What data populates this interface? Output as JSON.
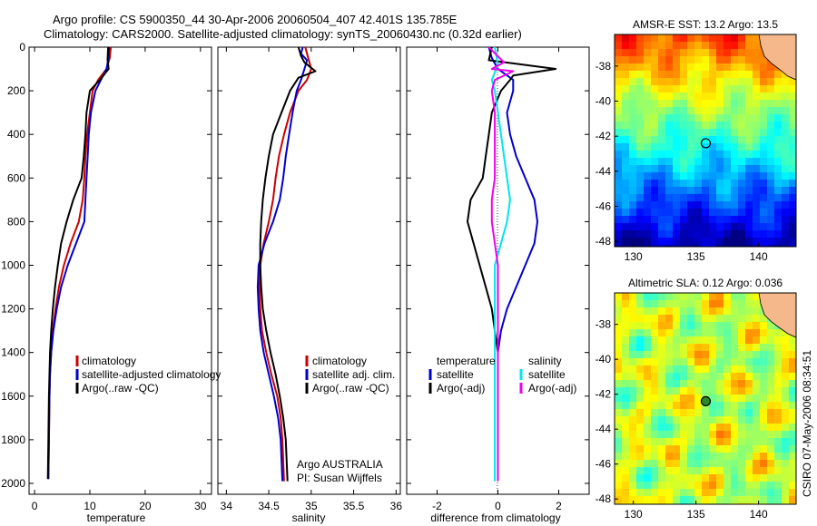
{
  "header": {
    "title_line1": "Argo profile: CS 5900350_44 30-Apr-2006 20060504_407 42.401S 135.785E",
    "title_line2": "Climatology: CARS2000. Satellite-adjusted climatology: synTS_20060430.nc (0.32d earlier)"
  },
  "colors": {
    "climatology": "#cc0000",
    "satellite": "#0000cc",
    "argo": "#000000",
    "sal_satellite": "#00e5ee",
    "sal_argo": "#ee00ee",
    "land": "#f5b88a"
  },
  "chart_data": [
    {
      "type": "line",
      "id": "temperature-profile",
      "xlabel": "temperature",
      "xlim": [
        -1,
        32
      ],
      "ylim": [
        0,
        2050
      ],
      "y_reversed": true,
      "xticks": [
        "0",
        "10",
        "20",
        "30"
      ],
      "yticks": [
        "0",
        "200",
        "400",
        "600",
        "800",
        "1000",
        "1200",
        "1400",
        "1600",
        "1800",
        "2000"
      ],
      "legend": [
        "climatology",
        "satellite-adjusted climatology",
        "Argo(..raw -QC)"
      ],
      "series": [
        {
          "name": "climatology",
          "color": "#cc0000",
          "points": [
            [
              13.8,
              0
            ],
            [
              13.6,
              50
            ],
            [
              13.0,
              100
            ],
            [
              11.5,
              150
            ],
            [
              10.5,
              200
            ],
            [
              10.0,
              300
            ],
            [
              9.5,
              400
            ],
            [
              9.2,
              500
            ],
            [
              9.0,
              600
            ],
            [
              8.7,
              700
            ],
            [
              8.0,
              800
            ],
            [
              6.5,
              900
            ],
            [
              5.3,
              1000
            ],
            [
              4.4,
              1100
            ],
            [
              3.8,
              1200
            ],
            [
              3.3,
              1300
            ],
            [
              3.0,
              1400
            ],
            [
              2.8,
              1500
            ],
            [
              2.7,
              1600
            ],
            [
              2.6,
              1800
            ],
            [
              2.5,
              1980
            ]
          ]
        },
        {
          "name": "satellite-adjusted climatology",
          "color": "#0000cc",
          "points": [
            [
              13.5,
              0
            ],
            [
              13.4,
              50
            ],
            [
              13.0,
              100
            ],
            [
              12.0,
              150
            ],
            [
              11.0,
              200
            ],
            [
              10.2,
              300
            ],
            [
              9.8,
              400
            ],
            [
              9.6,
              500
            ],
            [
              9.4,
              600
            ],
            [
              9.2,
              700
            ],
            [
              9.0,
              800
            ],
            [
              7.5,
              900
            ],
            [
              6.0,
              1000
            ],
            [
              4.8,
              1100
            ],
            [
              4.0,
              1200
            ],
            [
              3.4,
              1300
            ],
            [
              3.0,
              1400
            ],
            [
              2.8,
              1500
            ],
            [
              2.7,
              1600
            ],
            [
              2.6,
              1800
            ],
            [
              2.5,
              1980
            ]
          ]
        },
        {
          "name": "Argo(..raw -QC)",
          "color": "#000000",
          "points": [
            [
              13.3,
              0
            ],
            [
              13.2,
              60
            ],
            [
              13.4,
              100
            ],
            [
              11.8,
              150
            ],
            [
              10.0,
              200
            ],
            [
              9.4,
              300
            ],
            [
              9.2,
              400
            ],
            [
              8.9,
              500
            ],
            [
              8.5,
              600
            ],
            [
              7.0,
              700
            ],
            [
              5.8,
              800
            ],
            [
              4.8,
              900
            ],
            [
              4.2,
              1000
            ],
            [
              3.7,
              1100
            ],
            [
              3.3,
              1200
            ],
            [
              3.0,
              1300
            ],
            [
              2.8,
              1400
            ],
            [
              2.7,
              1500
            ],
            [
              2.6,
              1600
            ],
            [
              2.5,
              1800
            ],
            [
              2.4,
              1980
            ]
          ]
        }
      ]
    },
    {
      "type": "line",
      "id": "salinity-profile",
      "xlabel": "salinity",
      "xlim": [
        33.9,
        36.05
      ],
      "ylim": [
        0,
        2050
      ],
      "y_reversed": true,
      "xticks": [
        "34",
        "34.5",
        "35",
        "35.5",
        "36"
      ],
      "legend": [
        "climatology",
        "satellite adj. clim.",
        "Argo(..raw -QC)"
      ],
      "annotation": [
        "Argo AUSTRALIA",
        "PI: Susan Wijffels"
      ],
      "series": [
        {
          "name": "climatology",
          "color": "#cc0000",
          "points": [
            [
              34.93,
              0
            ],
            [
              35.0,
              100
            ],
            [
              34.95,
              150
            ],
            [
              34.85,
              200
            ],
            [
              34.75,
              300
            ],
            [
              34.68,
              400
            ],
            [
              34.62,
              500
            ],
            [
              34.58,
              600
            ],
            [
              34.55,
              700
            ],
            [
              34.5,
              800
            ],
            [
              34.44,
              900
            ],
            [
              34.4,
              1000
            ],
            [
              34.39,
              1100
            ],
            [
              34.4,
              1200
            ],
            [
              34.42,
              1300
            ],
            [
              34.47,
              1400
            ],
            [
              34.53,
              1500
            ],
            [
              34.6,
              1600
            ],
            [
              34.64,
              1700
            ],
            [
              34.66,
              1800
            ],
            [
              34.68,
              1990
            ]
          ]
        },
        {
          "name": "satellite adj. clim.",
          "color": "#0000cc",
          "points": [
            [
              34.9,
              0
            ],
            [
              34.88,
              30
            ],
            [
              34.95,
              60
            ],
            [
              34.92,
              100
            ],
            [
              34.88,
              150
            ],
            [
              34.83,
              200
            ],
            [
              34.78,
              300
            ],
            [
              34.74,
              400
            ],
            [
              34.7,
              500
            ],
            [
              34.67,
              600
            ],
            [
              34.63,
              700
            ],
            [
              34.55,
              800
            ],
            [
              34.45,
              900
            ],
            [
              34.38,
              1000
            ],
            [
              34.37,
              1100
            ],
            [
              34.38,
              1200
            ],
            [
              34.4,
              1300
            ],
            [
              34.44,
              1400
            ],
            [
              34.5,
              1500
            ],
            [
              34.56,
              1600
            ],
            [
              34.61,
              1700
            ],
            [
              34.64,
              1800
            ],
            [
              34.66,
              1990
            ]
          ]
        },
        {
          "name": "Argo(..raw -QC)",
          "color": "#000000",
          "points": [
            [
              34.85,
              0
            ],
            [
              34.88,
              40
            ],
            [
              34.92,
              70
            ],
            [
              35.05,
              110
            ],
            [
              34.85,
              140
            ],
            [
              34.75,
              200
            ],
            [
              34.65,
              300
            ],
            [
              34.55,
              400
            ],
            [
              34.5,
              500
            ],
            [
              34.46,
              600
            ],
            [
              34.43,
              700
            ],
            [
              34.41,
              800
            ],
            [
              34.4,
              900
            ],
            [
              34.4,
              1000
            ],
            [
              34.41,
              1100
            ],
            [
              34.43,
              1200
            ],
            [
              34.47,
              1300
            ],
            [
              34.52,
              1400
            ],
            [
              34.58,
              1500
            ],
            [
              34.63,
              1600
            ],
            [
              34.67,
              1700
            ],
            [
              34.7,
              1800
            ],
            [
              34.72,
              1990
            ]
          ]
        }
      ]
    },
    {
      "type": "line",
      "id": "difference-profile",
      "xlabel": "difference from climatology",
      "xlim": [
        -3.0,
        3.0
      ],
      "ylim": [
        0,
        2050
      ],
      "y_reversed": true,
      "xticks": [
        "-2",
        "0",
        "2"
      ],
      "legend": [
        "temperature",
        "satellite",
        "Argo(-adj)",
        "salinity",
        "satellite",
        "Argo(-adj)"
      ],
      "series": [
        {
          "name": "temperature satellite",
          "color": "#0000cc",
          "points": [
            [
              -0.3,
              0
            ],
            [
              -0.2,
              50
            ],
            [
              0.0,
              100
            ],
            [
              0.5,
              150
            ],
            [
              0.5,
              200
            ],
            [
              0.3,
              300
            ],
            [
              0.4,
              400
            ],
            [
              0.6,
              500
            ],
            [
              0.9,
              600
            ],
            [
              1.2,
              700
            ],
            [
              1.3,
              800
            ],
            [
              1.2,
              900
            ],
            [
              0.9,
              1000
            ],
            [
              0.6,
              1100
            ],
            [
              0.3,
              1200
            ],
            [
              0.1,
              1300
            ],
            [
              0.0,
              1400
            ],
            [
              0.0,
              1600
            ],
            [
              0.0,
              1800
            ],
            [
              0.0,
              1980
            ]
          ]
        },
        {
          "name": "temperature Argo(-adj)",
          "color": "#000000",
          "points": [
            [
              -0.2,
              0
            ],
            [
              -0.3,
              60
            ],
            [
              1.9,
              100
            ],
            [
              0.5,
              130
            ],
            [
              0.4,
              150
            ],
            [
              0.1,
              200
            ],
            [
              -0.2,
              300
            ],
            [
              -0.3,
              400
            ],
            [
              -0.4,
              500
            ],
            [
              -0.5,
              600
            ],
            [
              -0.9,
              700
            ],
            [
              -1.0,
              800
            ],
            [
              -0.8,
              900
            ],
            [
              -0.6,
              1000
            ],
            [
              -0.4,
              1100
            ],
            [
              -0.2,
              1200
            ],
            [
              -0.1,
              1300
            ],
            [
              0.0,
              1400
            ],
            [
              0.0,
              1600
            ],
            [
              0.0,
              1800
            ],
            [
              0.0,
              1980
            ]
          ]
        },
        {
          "name": "salinity satellite",
          "color": "#00e5ee",
          "points": [
            [
              -0.1,
              0
            ],
            [
              0.0,
              80
            ],
            [
              -0.2,
              150
            ],
            [
              -0.1,
              200
            ],
            [
              0.0,
              300
            ],
            [
              0.1,
              400
            ],
            [
              0.2,
              500
            ],
            [
              0.3,
              600
            ],
            [
              0.4,
              700
            ],
            [
              0.3,
              800
            ],
            [
              0.1,
              900
            ],
            [
              -0.1,
              1000
            ],
            [
              -0.1,
              1100
            ],
            [
              -0.1,
              1200
            ],
            [
              -0.1,
              1300
            ],
            [
              -0.1,
              1500
            ],
            [
              -0.1,
              1700
            ],
            [
              -0.1,
              1990
            ]
          ]
        },
        {
          "name": "salinity Argo(-adj)",
          "color": "#ee00ee",
          "points": [
            [
              -0.3,
              0
            ],
            [
              0.2,
              70
            ],
            [
              -0.2,
              100
            ],
            [
              0.5,
              110
            ],
            [
              -0.1,
              150
            ],
            [
              -0.2,
              200
            ],
            [
              -0.1,
              300
            ],
            [
              -0.1,
              400
            ],
            [
              -0.1,
              500
            ],
            [
              -0.1,
              600
            ],
            [
              -0.2,
              700
            ],
            [
              -0.2,
              800
            ],
            [
              -0.1,
              900
            ],
            [
              0.0,
              1000
            ],
            [
              0.0,
              1100
            ],
            [
              0.0,
              1200
            ],
            [
              0.0,
              1400
            ],
            [
              0.0,
              1600
            ],
            [
              0.0,
              1800
            ],
            [
              0.0,
              1990
            ]
          ]
        }
      ]
    },
    {
      "type": "heatmap",
      "id": "amsr-sst-map",
      "title": "AMSR-E SST: 13.2 Argo: 13.5",
      "xlim": [
        128.5,
        143
      ],
      "ylim": [
        -48.3,
        -36.2
      ],
      "xticks": [
        "130",
        "135",
        "140"
      ],
      "yticks": [
        "-38",
        "-40",
        "-42",
        "-44",
        "-46",
        "-48"
      ],
      "marker": [
        135.785,
        -42.401
      ]
    },
    {
      "type": "heatmap",
      "id": "altimetric-sla-map",
      "title": "Altimetric SLA: 0.12 Argo: 0.036",
      "xlim": [
        128.5,
        143
      ],
      "ylim": [
        -48.3,
        -36.2
      ],
      "xticks": [
        "130",
        "135",
        "140"
      ],
      "yticks": [
        "-38",
        "-40",
        "-42",
        "-44",
        "-46",
        "-48"
      ],
      "marker": [
        135.785,
        -42.401
      ]
    }
  ],
  "footer": {
    "stamp": "CSIRO 07-May-2006 08:34:51"
  }
}
